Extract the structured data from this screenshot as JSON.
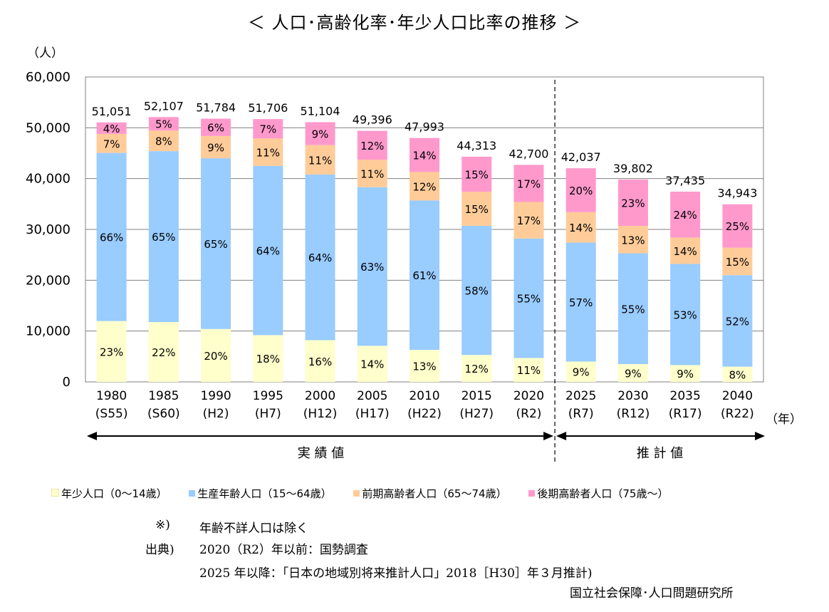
{
  "chart_data": {
    "type": "bar",
    "stacked": true,
    "title": "＜ 人口･高齢化率･年少人口比率の推移 ＞",
    "ylabel": "（人）",
    "xunit": "（年）",
    "ylim": [
      0,
      60000
    ],
    "yticks": [
      "0",
      "10,000",
      "20,000",
      "30,000",
      "40,000",
      "50,000",
      "60,000"
    ],
    "grid": true,
    "categories": [
      "1980",
      "1985",
      "1990",
      "1995",
      "2000",
      "2005",
      "2010",
      "2015",
      "2020",
      "2025",
      "2030",
      "2035",
      "2040"
    ],
    "sublabels": [
      "(S55)",
      "(S60)",
      "(H2)",
      "(H7)",
      "(H12)",
      "(H17)",
      "(H22)",
      "(H27)",
      "(R2)",
      "(R7)",
      "(R12)",
      "(R17)",
      "(R22)"
    ],
    "totals": [
      51051,
      52107,
      51784,
      51706,
      51104,
      49396,
      47993,
      44313,
      42700,
      42037,
      39802,
      37435,
      34943
    ],
    "total_labels": [
      "51,051",
      "52,107",
      "51,784",
      "51,706",
      "51,104",
      "49,396",
      "47,993",
      "44,313",
      "42,700",
      "42,037",
      "39,802",
      "37,435",
      "34,943"
    ],
    "series": [
      {
        "name": "年少人口（0～14歳）",
        "color": "#ffffcc",
        "percents": [
          23,
          22,
          20,
          18,
          16,
          14,
          13,
          12,
          11,
          9,
          9,
          9,
          8
        ],
        "values": [
          11970,
          11760,
          10400,
          9200,
          8200,
          7100,
          6300,
          5300,
          4700,
          4000,
          3500,
          3300,
          3000
        ]
      },
      {
        "name": "生産年齢人口（15～64歳）",
        "color": "#99ccff",
        "percents": [
          66,
          65,
          65,
          64,
          64,
          63,
          61,
          58,
          55,
          57,
          55,
          53,
          52
        ],
        "values": [
          33080,
          33640,
          33600,
          33300,
          32600,
          31200,
          29400,
          25400,
          23500,
          23400,
          21800,
          19900,
          18000
        ]
      },
      {
        "name": "前期高齢者人口（65～74歳）",
        "color": "#ffcc99",
        "percents": [
          7,
          8,
          9,
          11,
          11,
          11,
          12,
          15,
          17,
          14,
          13,
          14,
          15
        ],
        "values": [
          3750,
          4060,
          4380,
          5400,
          5800,
          5400,
          5600,
          6700,
          7200,
          6000,
          5400,
          5200,
          5400
        ]
      },
      {
        "name": "後期高齢者人口（75歳～）",
        "color": "#ff99cc",
        "percents": [
          4,
          5,
          6,
          7,
          9,
          12,
          14,
          15,
          17,
          20,
          23,
          24,
          25
        ],
        "values": [
          2251,
          2647,
          3404,
          3806,
          4504,
          5696,
          6693,
          6913,
          7300,
          8637,
          9102,
          9035,
          8543
        ]
      }
    ],
    "percent_suffix": "%",
    "periods": [
      {
        "label": "実 績 値",
        "from": "1980",
        "to": "2020"
      },
      {
        "label": "推 計 値",
        "from": "2025",
        "to": "2040"
      }
    ]
  },
  "notes": {
    "mark": "※)",
    "mark_text": "年齢不詳人口は除く",
    "source_label": "出典)",
    "source_line1": "2020（R2）年以前：国勢調査",
    "source_line2": "2025 年以降：「日本の地域別将来推計人口」2018［H30］年３月推計)",
    "source_line3": "国立社会保障･人口問題研究所"
  }
}
